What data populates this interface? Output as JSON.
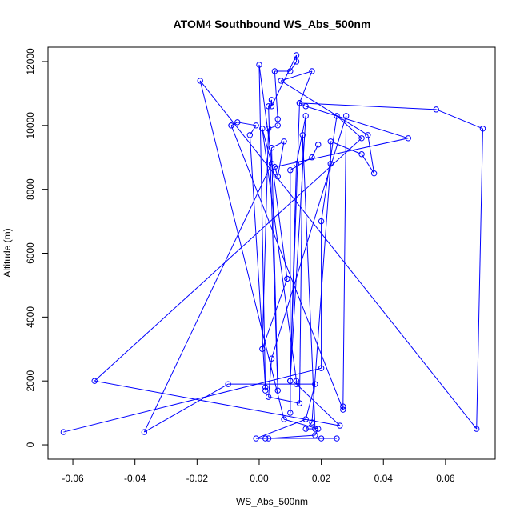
{
  "chart_data": {
    "type": "line",
    "title": "ATOM4 Southbound WS_Abs_500nm",
    "xlabel": "WS_Abs_500nm",
    "ylabel": "Altitude (m)",
    "xlim": [
      -0.068,
      0.076
    ],
    "ylim": [
      -450,
      12450
    ],
    "xticks": [
      "-0.06",
      "-0.04",
      "-0.02",
      "0.00",
      "0.02",
      "0.04",
      "0.06"
    ],
    "yticks": [
      "0",
      "2000",
      "4000",
      "6000",
      "8000",
      "10000",
      "12000"
    ],
    "grid": false,
    "markers": "open-circle",
    "colors": {
      "series": "#0000ff",
      "axis": "#000000"
    },
    "series": [
      {
        "points": [
          [
            0.019,
            9400
          ],
          [
            0.017,
            9000
          ],
          [
            0.01,
            8600
          ],
          [
            0.01,
            1000
          ],
          [
            0.01,
            2000
          ],
          [
            0.012,
            8800
          ],
          [
            0.015,
            10300
          ],
          [
            0.01,
            2000
          ],
          [
            0.013,
            10700
          ],
          [
            0.015,
            10600
          ],
          [
            0.048,
            9600
          ],
          [
            0.005,
            8700
          ],
          [
            0.006,
            8400
          ],
          [
            0.008,
            9500
          ],
          [
            0.004,
            9300
          ],
          [
            0.006,
            1700
          ],
          [
            0.003,
            10600
          ],
          [
            0.004,
            10800
          ],
          [
            0.004,
            10600
          ],
          [
            0.012,
            12200
          ],
          [
            0.012,
            12000
          ],
          [
            0.01,
            11700
          ],
          [
            0.005,
            11700
          ],
          [
            0.006,
            10200
          ],
          [
            0.006,
            10000
          ],
          [
            0.003,
            9900
          ],
          [
            0.001,
            3000
          ],
          [
            0.009,
            5200
          ],
          [
            0.009,
            5200
          ],
          [
            0.0,
            11900
          ],
          [
            0.002,
            1700
          ],
          [
            0.002,
            1800
          ],
          [
            -0.003,
            9700
          ],
          [
            -0.001,
            10000
          ],
          [
            -0.007,
            10100
          ],
          [
            -0.009,
            10000
          ],
          [
            -0.009,
            10000
          ],
          [
            0.027,
            1100
          ],
          [
            0.027,
            1200
          ],
          [
            0.028,
            10300
          ],
          [
            0.004,
            2700
          ],
          [
            0.003,
            1500
          ],
          [
            0.013,
            1300
          ],
          [
            0.014,
            9700
          ],
          [
            0.018,
            500
          ],
          [
            0.015,
            500
          ],
          [
            0.017,
            700
          ],
          [
            0.023,
            8800
          ],
          [
            0.023,
            9500
          ],
          [
            0.033,
            9100
          ],
          [
            0.037,
            8500
          ],
          [
            0.035,
            9700
          ],
          [
            0.007,
            11400
          ],
          [
            0.017,
            11700
          ],
          [
            0.013,
            10700
          ],
          [
            0.057,
            10500
          ],
          [
            0.072,
            9900
          ],
          [
            0.07,
            500
          ],
          [
            -0.019,
            11400
          ],
          [
            0.008,
            800
          ],
          [
            0.019,
            500
          ],
          [
            0.018,
            300
          ],
          [
            0.003,
            200
          ],
          [
            0.02,
            200
          ],
          [
            0.025,
            200
          ],
          [
            0.002,
            200
          ],
          [
            -0.001,
            200
          ],
          [
            0.015,
            800
          ],
          [
            0.018,
            1900
          ],
          [
            -0.01,
            1900
          ],
          [
            -0.037,
            400
          ],
          [
            0.004,
            8800
          ],
          [
            0.001,
            9900
          ],
          [
            0.012,
            2000
          ],
          [
            0.012,
            1900
          ],
          [
            0.026,
            600
          ],
          [
            -0.053,
            2000
          ],
          [
            0.033,
            9600
          ],
          [
            0.025,
            10300
          ],
          [
            0.02,
            7000
          ],
          [
            0.02,
            2400
          ],
          [
            -0.063,
            400
          ]
        ]
      }
    ]
  }
}
